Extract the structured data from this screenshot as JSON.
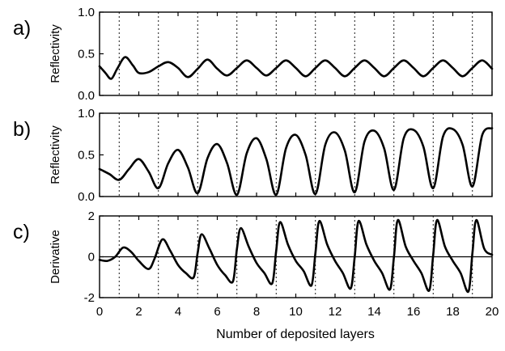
{
  "chart_data": [
    {
      "type": "line",
      "panel_label": "a)",
      "ylabel": "Reflectivity",
      "xlim": [
        0,
        20
      ],
      "ylim": [
        0,
        1
      ],
      "yticks": [
        "0.0",
        "0.5",
        "1.0"
      ],
      "ytick_values": [
        0,
        0.5,
        1.0
      ],
      "grid": "vertical dotted lines at odd x",
      "series": [
        {
          "x": [
            0,
            0.3,
            0.6,
            0.9,
            1.3,
            1.7,
            2.0,
            2.5,
            3.0,
            3.5,
            4.0,
            4.5,
            5.0,
            5.5,
            6.0,
            6.5,
            7.0,
            7.5,
            8.0,
            8.5,
            9.0,
            9.5,
            10.0,
            10.5,
            11.0,
            11.5,
            12.0,
            12.5,
            13.0,
            13.5,
            14.0,
            14.5,
            15.0,
            15.5,
            16.0,
            16.5,
            17.0,
            17.5,
            18.0,
            18.5,
            19.0,
            19.5,
            20.0
          ],
          "y": [
            0.35,
            0.27,
            0.2,
            0.32,
            0.46,
            0.36,
            0.27,
            0.28,
            0.35,
            0.4,
            0.33,
            0.22,
            0.32,
            0.43,
            0.32,
            0.24,
            0.33,
            0.42,
            0.33,
            0.24,
            0.33,
            0.42,
            0.33,
            0.23,
            0.33,
            0.42,
            0.33,
            0.23,
            0.33,
            0.42,
            0.33,
            0.23,
            0.33,
            0.42,
            0.33,
            0.23,
            0.33,
            0.42,
            0.33,
            0.23,
            0.33,
            0.42,
            0.32
          ]
        }
      ]
    },
    {
      "type": "line",
      "panel_label": "b)",
      "ylabel": "Reflectivity",
      "xlim": [
        0,
        20
      ],
      "ylim": [
        0,
        1
      ],
      "yticks": [
        "0.0",
        "0.5",
        "1.0"
      ],
      "ytick_values": [
        0,
        0.5,
        1.0
      ],
      "grid": "vertical dotted lines at odd x",
      "series": [
        {
          "x": [
            0,
            0.5,
            1.0,
            1.5,
            2.0,
            2.5,
            3.0,
            3.5,
            4.0,
            4.5,
            5.0,
            5.5,
            6.0,
            6.5,
            7.0,
            7.5,
            8.0,
            8.5,
            9.0,
            9.5,
            10.0,
            10.5,
            11.0,
            11.5,
            12.0,
            12.5,
            13.0,
            13.5,
            14.0,
            14.5,
            15.0,
            15.5,
            16.0,
            16.5,
            17.0,
            17.5,
            18.0,
            18.5,
            19.0,
            19.5,
            20.0
          ],
          "y": [
            0.33,
            0.27,
            0.2,
            0.33,
            0.45,
            0.3,
            0.1,
            0.4,
            0.56,
            0.35,
            0.04,
            0.46,
            0.63,
            0.4,
            0.02,
            0.52,
            0.7,
            0.45,
            0.02,
            0.58,
            0.74,
            0.5,
            0.03,
            0.62,
            0.77,
            0.55,
            0.05,
            0.66,
            0.79,
            0.58,
            0.08,
            0.7,
            0.8,
            0.6,
            0.1,
            0.72,
            0.81,
            0.62,
            0.12,
            0.74,
            0.82
          ]
        }
      ]
    },
    {
      "type": "line",
      "panel_label": "c)",
      "ylabel": "Derivative",
      "xlabel": "Number of deposited layers",
      "xlim": [
        0,
        20
      ],
      "ylim": [
        -2,
        2
      ],
      "yticks": [
        "-2",
        "0",
        "2"
      ],
      "ytick_values": [
        -2,
        0,
        2
      ],
      "xticks": [
        "0",
        "2",
        "4",
        "6",
        "8",
        "10",
        "12",
        "14",
        "16",
        "18",
        "20"
      ],
      "xtick_values": [
        0,
        2,
        4,
        6,
        8,
        10,
        12,
        14,
        16,
        18,
        20
      ],
      "grid": "vertical dotted lines at odd x; horizontal line at y=0",
      "series": [
        {
          "x": [
            0,
            0.4,
            0.8,
            1.2,
            1.6,
            2.0,
            2.5,
            2.8,
            3.2,
            3.6,
            4.0,
            4.4,
            4.8,
            5.0,
            5.2,
            5.6,
            6.0,
            6.4,
            6.8,
            7.0,
            7.2,
            7.6,
            8.0,
            8.4,
            8.8,
            9.0,
            9.2,
            9.6,
            10.0,
            10.4,
            10.8,
            11.0,
            11.2,
            11.6,
            12.0,
            12.4,
            12.8,
            13.0,
            13.2,
            13.6,
            14.0,
            14.4,
            14.8,
            15.0,
            15.2,
            15.6,
            16.0,
            16.4,
            16.8,
            17.0,
            17.2,
            17.6,
            18.0,
            18.4,
            18.8,
            19.0,
            19.2,
            19.6,
            20.0
          ],
          "y": [
            -0.15,
            -0.2,
            0.0,
            0.45,
            0.25,
            -0.2,
            -0.6,
            -0.1,
            0.85,
            0.3,
            -0.4,
            -0.8,
            -1.0,
            0.2,
            1.1,
            0.4,
            -0.4,
            -0.9,
            -1.2,
            0.4,
            1.4,
            0.5,
            -0.3,
            -0.8,
            -1.3,
            0.3,
            1.7,
            0.6,
            -0.2,
            -0.7,
            -1.4,
            0.2,
            1.75,
            0.6,
            -0.2,
            -0.8,
            -1.55,
            0.0,
            1.75,
            0.6,
            -0.2,
            -0.8,
            -1.6,
            0.0,
            1.8,
            0.5,
            -0.2,
            -0.8,
            -1.65,
            0.1,
            1.8,
            0.5,
            -0.2,
            -0.8,
            -1.7,
            0.2,
            1.8,
            0.4,
            0.1
          ]
        }
      ]
    }
  ]
}
